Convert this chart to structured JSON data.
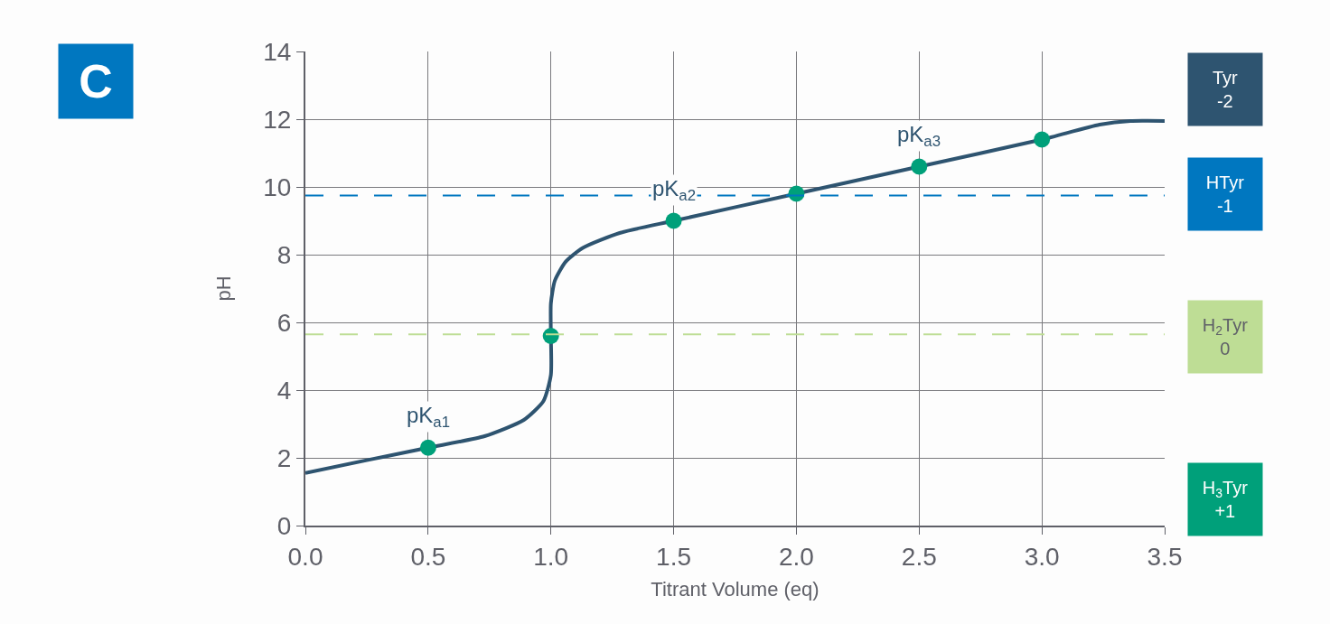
{
  "chart_data": {
    "type": "line",
    "xlabel": "Titrant Volume (eq)",
    "ylabel": "pH",
    "xlim": [
      0,
      3.5
    ],
    "xticks": [
      {
        "value": 0,
        "label": "0.0"
      },
      0.5,
      {
        "value": 1,
        "label": "1.0"
      },
      1.5,
      {
        "value": 2,
        "label": "2.0"
      },
      2.5,
      {
        "value": 3,
        "label": "3.0"
      },
      3.5
    ],
    "ylim": [
      0,
      14
    ],
    "yticks": [
      0,
      2,
      4,
      6,
      8,
      10,
      12,
      14
    ],
    "grid": true,
    "series": [
      {
        "color": "#2e5470",
        "marker": "none",
        "line_style": "solid",
        "x": [
          0,
          0.25,
          0.5,
          0.73,
          0.89,
          0.97,
          1.0,
          1.0,
          1.0,
          1.016,
          1.06,
          1.13,
          1.28,
          1.5,
          2.0,
          2.5,
          3.0,
          3.235,
          3.36,
          3.5
        ],
        "values": [
          1.55,
          1.93,
          2.3,
          2.64,
          3.12,
          3.68,
          4.45,
          5.6,
          6.56,
          7.23,
          7.79,
          8.2,
          8.64,
          9.0,
          9.8,
          10.6,
          11.4,
          11.84,
          11.95,
          11.95
        ]
      },
      {
        "type": "scatter",
        "color": "#00a07a",
        "marker": "circle",
        "x": [
          0.5,
          1.0,
          1.5,
          2.0,
          2.5,
          3.0
        ],
        "values": [
          2.3,
          5.6,
          9.0,
          9.8,
          10.6,
          11.4
        ]
      }
    ],
    "ref_lines": [
      {
        "axis": "y",
        "value": 9.75,
        "color": "#0077c0",
        "line_style": "dashed"
      },
      {
        "axis": "y",
        "value": 5.65,
        "color": "#bedd95",
        "line_style": "dashed"
      }
    ],
    "annotations": [
      "C",
      {
        "text": "pK$_{a1}$",
        "x": 0.5,
        "y": 2.3
      },
      {
        "text": "pK$_{a2}$",
        "x": 1.5,
        "y": 9.0
      },
      {
        "text": "pK$_{a3}$",
        "x": 2.5,
        "y": 10.6
      },
      "Tyr\n-2",
      "HTyr\n-1",
      "H$_{2}$Tyr\n0",
      "H$_{3}$Tyr\n+1"
    ]
  }
}
